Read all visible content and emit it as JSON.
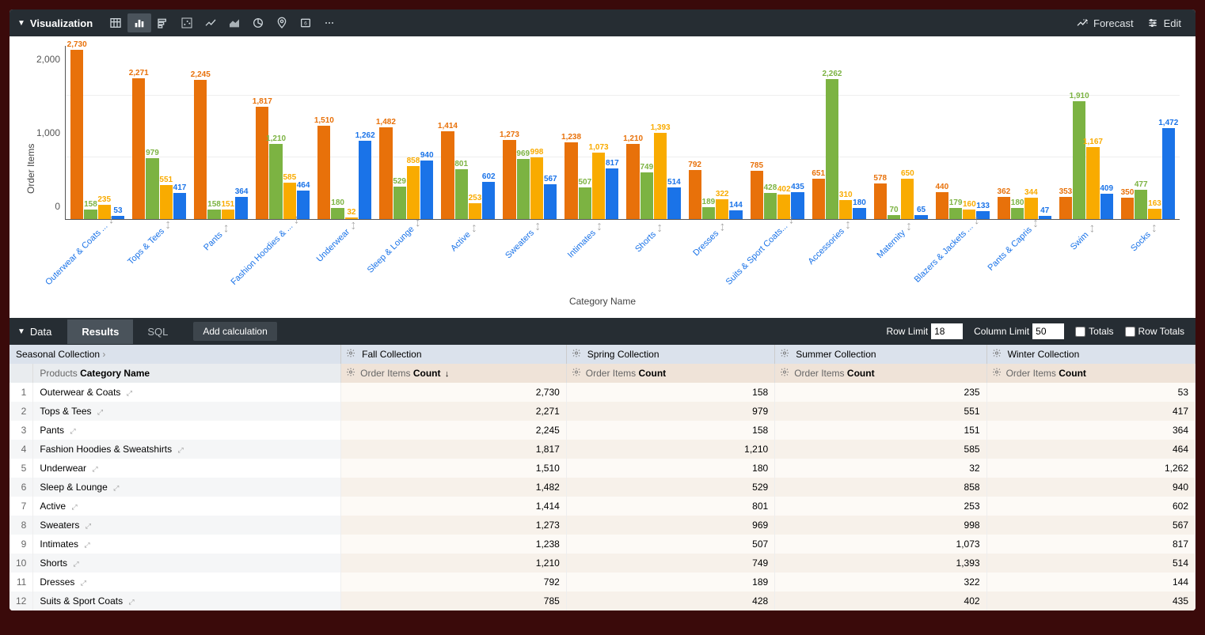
{
  "visualization": {
    "panel_title": "Visualization",
    "forecast_label": "Forecast",
    "edit_label": "Edit",
    "chart": {
      "type": "grouped-bar",
      "y_label": "Order Items",
      "x_label": "Category Name",
      "y_max": 2800,
      "y_ticks": [
        0,
        1000,
        2000
      ],
      "y_tick_labels": [
        "0",
        "1,000",
        "2,000"
      ],
      "series": [
        {
          "name": "Fall Collection",
          "color": "#e8710a"
        },
        {
          "name": "Spring Collection",
          "color": "#7cb342"
        },
        {
          "name": "Summer Collection",
          "color": "#f9ab00"
        },
        {
          "name": "Winter Collection",
          "color": "#1a73e8"
        }
      ],
      "categories": [
        {
          "label": "Outerwear & Coats ...",
          "full": "Outerwear & Coats",
          "values": [
            2730,
            158,
            235,
            53
          ]
        },
        {
          "label": "Tops & Tees",
          "values": [
            2271,
            979,
            551,
            417
          ]
        },
        {
          "label": "Pants",
          "values": [
            2245,
            158,
            151,
            364
          ]
        },
        {
          "label": "Fashion Hoodies & ...",
          "full": "Fashion Hoodies & Sweatshirts",
          "values": [
            1817,
            1210,
            585,
            464
          ]
        },
        {
          "label": "Underwear",
          "values": [
            1510,
            180,
            32,
            1262
          ]
        },
        {
          "label": "Sleep & Lounge",
          "values": [
            1482,
            529,
            858,
            940
          ]
        },
        {
          "label": "Active",
          "values": [
            1414,
            801,
            253,
            602
          ]
        },
        {
          "label": "Sweaters",
          "values": [
            1273,
            969,
            998,
            567
          ]
        },
        {
          "label": "Intimates",
          "values": [
            1238,
            507,
            1073,
            817
          ]
        },
        {
          "label": "Shorts",
          "values": [
            1210,
            749,
            1393,
            514
          ]
        },
        {
          "label": "Dresses",
          "values": [
            792,
            189,
            322,
            144
          ]
        },
        {
          "label": "Suits & Sport Coats...",
          "full": "Suits & Sport Coats",
          "values": [
            785,
            428,
            402,
            435
          ]
        },
        {
          "label": "Accessories",
          "values": [
            651,
            2262,
            310,
            180
          ]
        },
        {
          "label": "Maternity",
          "values": [
            578,
            70,
            650,
            65
          ]
        },
        {
          "label": "Blazers & Jackets ...",
          "full": "Blazers & Jackets",
          "values": [
            440,
            179,
            160,
            133
          ]
        },
        {
          "label": "Pants & Capris",
          "values": [
            362,
            180,
            344,
            47
          ]
        },
        {
          "label": "Swim",
          "values": [
            353,
            1910,
            1167,
            409
          ]
        },
        {
          "label": "Socks",
          "values": [
            350,
            477,
            163,
            1472
          ]
        }
      ]
    }
  },
  "data_panel": {
    "title": "Data",
    "tab_results": "Results",
    "tab_sql": "SQL",
    "add_calc": "Add calculation",
    "row_limit_label": "Row Limit",
    "row_limit_value": "18",
    "col_limit_label": "Column Limit",
    "col_limit_value": "50",
    "totals_label": "Totals",
    "row_totals_label": "Row Totals"
  },
  "table": {
    "pivot_label": "Seasonal Collection",
    "pivot_columns": [
      "Fall Collection",
      "Spring Collection",
      "Summer Collection",
      "Winter Collection"
    ],
    "dimension_group": "Products",
    "dimension_name": "Category Name",
    "measure_group": "Order Items",
    "measure_name": "Count",
    "sort_indicator": "↓",
    "rows": [
      {
        "idx": 1,
        "name": "Outerwear & Coats",
        "vals": [
          "2,730",
          "158",
          "235",
          "53"
        ]
      },
      {
        "idx": 2,
        "name": "Tops & Tees",
        "vals": [
          "2,271",
          "979",
          "551",
          "417"
        ]
      },
      {
        "idx": 3,
        "name": "Pants",
        "vals": [
          "2,245",
          "158",
          "151",
          "364"
        ]
      },
      {
        "idx": 4,
        "name": "Fashion Hoodies & Sweatshirts",
        "vals": [
          "1,817",
          "1,210",
          "585",
          "464"
        ]
      },
      {
        "idx": 5,
        "name": "Underwear",
        "vals": [
          "1,510",
          "180",
          "32",
          "1,262"
        ]
      },
      {
        "idx": 6,
        "name": "Sleep & Lounge",
        "vals": [
          "1,482",
          "529",
          "858",
          "940"
        ]
      },
      {
        "idx": 7,
        "name": "Active",
        "vals": [
          "1,414",
          "801",
          "253",
          "602"
        ]
      },
      {
        "idx": 8,
        "name": "Sweaters",
        "vals": [
          "1,273",
          "969",
          "998",
          "567"
        ]
      },
      {
        "idx": 9,
        "name": "Intimates",
        "vals": [
          "1,238",
          "507",
          "1,073",
          "817"
        ]
      },
      {
        "idx": 10,
        "name": "Shorts",
        "vals": [
          "1,210",
          "749",
          "1,393",
          "514"
        ]
      },
      {
        "idx": 11,
        "name": "Dresses",
        "vals": [
          "792",
          "189",
          "322",
          "144"
        ]
      },
      {
        "idx": 12,
        "name": "Suits & Sport Coats",
        "vals": [
          "785",
          "428",
          "402",
          "435"
        ]
      }
    ]
  }
}
